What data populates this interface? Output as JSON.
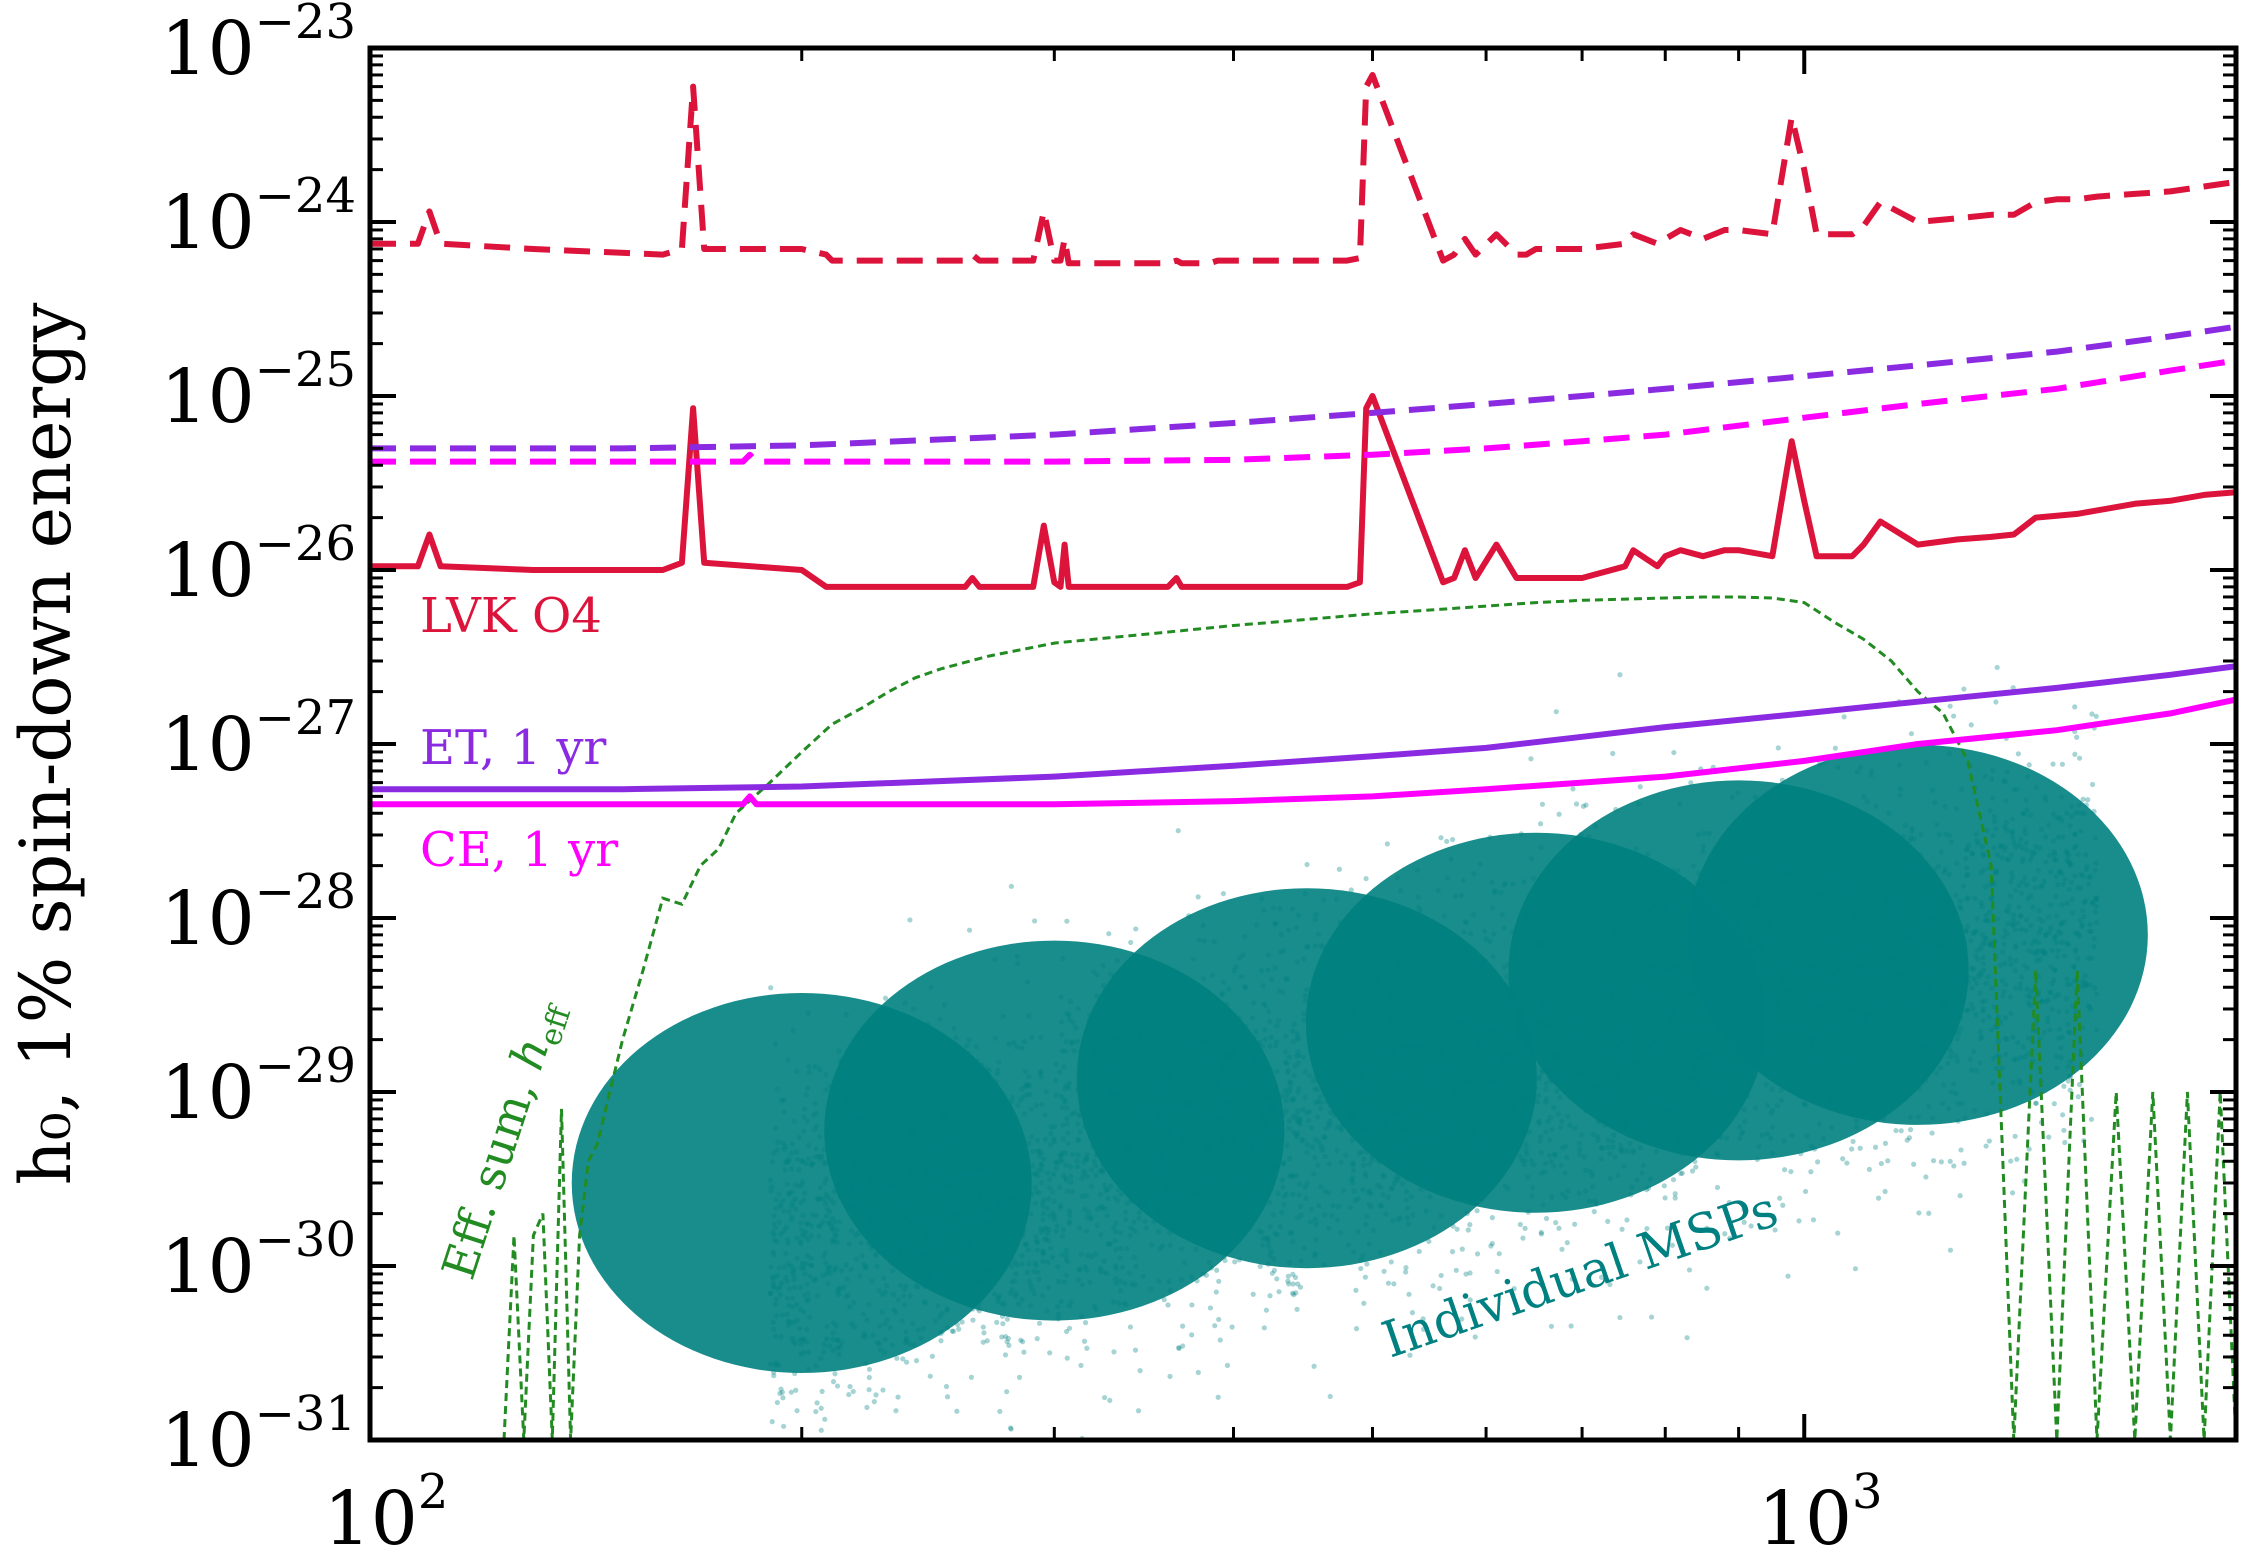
{
  "chart_data": {
    "type": "line",
    "title": "",
    "xlabel": "",
    "ylabel": "h₀, 1% spin-down energy",
    "x_scale": "log",
    "y_scale": "log",
    "xlim": [
      100,
      2000
    ],
    "ylim": [
      1e-31,
      1e-23
    ],
    "grid": false,
    "legend": "none",
    "x_ticks": [
      {
        "value": 100,
        "base": "10",
        "exp": "2"
      },
      {
        "value": 1000,
        "base": "10",
        "exp": "3"
      }
    ],
    "y_ticks": [
      {
        "value": 1e-23,
        "base": "10",
        "exp": "−23"
      },
      {
        "value": 1e-24,
        "base": "10",
        "exp": "−24"
      },
      {
        "value": 1e-25,
        "base": "10",
        "exp": "−25"
      },
      {
        "value": 1e-26,
        "base": "10",
        "exp": "−26"
      },
      {
        "value": 1e-27,
        "base": "10",
        "exp": "−27"
      },
      {
        "value": 1e-28,
        "base": "10",
        "exp": "−28"
      },
      {
        "value": 1e-29,
        "base": "10",
        "exp": "−29"
      },
      {
        "value": 1e-30,
        "base": "10",
        "exp": "−30"
      },
      {
        "value": 1e-31,
        "base": "10",
        "exp": "−31"
      }
    ],
    "colors": {
      "lvk": "#dc143c",
      "et": "#8a2be2",
      "ce": "#ff00ff",
      "eff_sum": "#228b22",
      "msps": "#008080"
    },
    "series": [
      {
        "style": "solid",
        "color": "#dc143c",
        "x": [
          100,
          108,
          110,
          112,
          130,
          160,
          165,
          168,
          171,
          200,
          208,
          210,
          212,
          215,
          217,
          219,
          260,
          263,
          266,
          290,
          295,
          300,
          303,
          305,
          307,
          310,
          330,
          360,
          365,
          368,
          380,
          385,
          390,
          410,
          420,
          450,
          480,
          490,
          495,
          500,
          560,
          570,
          580,
          590,
          610,
          630,
          640,
          650,
          700,
          750,
          760,
          790,
          800,
          820,
          850,
          880,
          900,
          950,
          980,
          1000,
          1020,
          1050,
          1080,
          1100,
          1130,
          1200,
          1280,
          1350,
          1400,
          1450,
          1500,
          1550,
          1600,
          1700,
          1800,
          1900,
          2000
        ],
        "y": [
          1.05e-26,
          1.05e-26,
          1.6e-26,
          1.05e-26,
          1e-26,
          1e-26,
          1.1e-26,
          8.5e-26,
          1.1e-26,
          1e-26,
          8e-27,
          8e-27,
          8e-27,
          8e-27,
          8e-27,
          8e-27,
          8e-27,
          9e-27,
          8e-27,
          8e-27,
          1.8e-26,
          8.5e-27,
          8e-27,
          1.4e-26,
          8e-27,
          8e-27,
          8e-27,
          8e-27,
          9e-27,
          8e-27,
          8e-27,
          8e-27,
          8e-27,
          8e-27,
          8e-27,
          8e-27,
          8e-27,
          8.5e-27,
          8.5e-26,
          1e-25,
          8.5e-27,
          9e-27,
          1.3e-26,
          9e-27,
          1.4e-26,
          9e-27,
          9e-27,
          9e-27,
          9e-27,
          1.05e-26,
          1.3e-26,
          1.05e-26,
          1.2e-26,
          1.3e-26,
          1.2e-26,
          1.3e-26,
          1.3e-26,
          1.2e-26,
          5.5e-26,
          2.5e-26,
          1.2e-26,
          1.2e-26,
          1.2e-26,
          1.4e-26,
          1.9e-26,
          1.4e-26,
          1.5e-26,
          1.55e-26,
          1.6e-26,
          2e-26,
          2.05e-26,
          2.1e-26,
          2.2e-26,
          2.4e-26,
          2.5e-26,
          2.7e-26,
          2.8e-26
        ]
      },
      {
        "style": "dashed",
        "color": "#dc143c",
        "x": [
          100,
          108,
          110,
          112,
          130,
          160,
          165,
          168,
          171,
          200,
          208,
          210,
          212,
          215,
          217,
          219,
          260,
          263,
          266,
          290,
          295,
          300,
          303,
          305,
          307,
          310,
          330,
          360,
          365,
          368,
          380,
          385,
          390,
          410,
          420,
          450,
          480,
          490,
          495,
          500,
          560,
          570,
          580,
          590,
          610,
          630,
          640,
          650,
          700,
          750,
          760,
          790,
          800,
          820,
          850,
          880,
          900,
          950,
          980,
          1000,
          1020,
          1050,
          1080,
          1100,
          1130,
          1200,
          1280,
          1350,
          1400,
          1450,
          1500,
          1550,
          1600,
          1700,
          1800,
          1900,
          2000
        ],
        "y": [
          7.5e-25,
          7.5e-25,
          1.15e-24,
          7.5e-25,
          7e-25,
          6.5e-25,
          7e-25,
          6e-24,
          7e-25,
          7e-25,
          6.5e-25,
          6e-25,
          6e-25,
          6e-25,
          6e-25,
          6e-25,
          6e-25,
          6.5e-25,
          6e-25,
          6e-25,
          1.15e-24,
          6e-25,
          6e-25,
          8e-25,
          5.8e-25,
          5.8e-25,
          5.8e-25,
          5.8e-25,
          6e-25,
          5.8e-25,
          5.8e-25,
          5.8e-25,
          6e-25,
          6e-25,
          6e-25,
          6e-25,
          6e-25,
          6.2e-25,
          6e-24,
          7e-24,
          6e-25,
          6.5e-25,
          8e-25,
          6.5e-25,
          8.5e-25,
          6.5e-25,
          6.5e-25,
          7e-25,
          7e-25,
          7.5e-25,
          8.5e-25,
          7.5e-25,
          8e-25,
          9e-25,
          8e-25,
          9e-25,
          9e-25,
          8.5e-25,
          4e-24,
          2e-24,
          8.5e-25,
          8.5e-25,
          8.5e-25,
          9.5e-25,
          1.3e-24,
          1e-24,
          1.05e-24,
          1.1e-24,
          1.1e-24,
          1.3e-24,
          1.35e-24,
          1.35e-24,
          1.4e-24,
          1.45e-24,
          1.5e-24,
          1.6e-24,
          1.7e-24
        ]
      },
      {
        "style": "dashed",
        "color": "#8a2be2",
        "x": [
          100,
          150,
          200,
          300,
          400,
          500,
          600,
          700,
          800,
          1000,
          1200,
          1500,
          1800,
          2000
        ],
        "y": [
          5e-26,
          5e-26,
          5.2e-26,
          6e-26,
          7e-26,
          8e-26,
          9e-26,
          1e-25,
          1.1e-25,
          1.3e-25,
          1.5e-25,
          1.8e-25,
          2.2e-25,
          2.5e-25
        ]
      },
      {
        "style": "dashed",
        "color": "#ff00ff",
        "x": [
          100,
          150,
          182,
          184,
          186,
          200,
          300,
          400,
          500,
          600,
          700,
          800,
          1000,
          1200,
          1500,
          1800,
          2000
        ],
        "y": [
          4.2e-26,
          4.2e-26,
          4.2e-26,
          4.6e-26,
          4.2e-26,
          4.2e-26,
          4.2e-26,
          4.3e-26,
          4.6e-26,
          5e-26,
          5.5e-26,
          6e-26,
          7.5e-26,
          9e-26,
          1.1e-25,
          1.4e-25,
          1.6e-25
        ]
      },
      {
        "style": "solid",
        "color": "#8a2be2",
        "x": [
          100,
          150,
          200,
          300,
          400,
          500,
          600,
          700,
          800,
          1000,
          1200,
          1500,
          1800,
          2000
        ],
        "y": [
          5.5e-28,
          5.5e-28,
          5.7e-28,
          6.5e-28,
          7.5e-28,
          8.5e-28,
          9.5e-28,
          1.1e-27,
          1.25e-27,
          1.5e-27,
          1.75e-27,
          2.1e-27,
          2.5e-27,
          2.8e-27
        ]
      },
      {
        "style": "solid",
        "color": "#ff00ff",
        "x": [
          100,
          150,
          182,
          184,
          186,
          200,
          300,
          400,
          500,
          600,
          700,
          800,
          1000,
          1200,
          1500,
          1800,
          2000
        ],
        "y": [
          4.5e-28,
          4.5e-28,
          4.5e-28,
          5e-28,
          4.5e-28,
          4.5e-28,
          4.5e-28,
          4.7e-28,
          5e-28,
          5.5e-28,
          6e-28,
          6.5e-28,
          8e-28,
          1e-27,
          1.2e-27,
          1.5e-27,
          1.8e-27
        ]
      }
    ],
    "eff_sum": {
      "style": "dashed",
      "color": "#228b22",
      "x": [
        124,
        126,
        128,
        130,
        132,
        134,
        136,
        138,
        140,
        142,
        144,
        146,
        150,
        155,
        160,
        165,
        170,
        175,
        180,
        190,
        200,
        210,
        220,
        230,
        240,
        250,
        270,
        300,
        350,
        400,
        450,
        500,
        550,
        600,
        650,
        700,
        750,
        800,
        850,
        900,
        950,
        1000,
        1050,
        1100,
        1150,
        1200,
        1250,
        1300,
        1350,
        1400,
        1450,
        1500,
        1550,
        1600,
        1650,
        1700,
        1750,
        1800,
        1850,
        1900,
        1950,
        2000
      ],
      "y": [
        1e-31,
        1.5e-30,
        1e-31,
        1.5e-30,
        2e-30,
        1e-31,
        8e-30,
        1e-31,
        1.5e-30,
        4e-30,
        5e-30,
        8e-30,
        2e-29,
        5e-29,
        1.3e-28,
        1.2e-28,
        2e-28,
        2.5e-28,
        4e-28,
        6e-28,
        9e-28,
        1.3e-27,
        1.6e-27,
        2e-27,
        2.4e-27,
        2.7e-27,
        3.2e-27,
        3.8e-27,
        4.3e-27,
        4.8e-27,
        5.2e-27,
        5.6e-27,
        5.9e-27,
        6.2e-27,
        6.5e-27,
        6.7e-27,
        6.8e-27,
        6.9e-27,
        7e-27,
        7e-27,
        6.9e-27,
        6.5e-27,
        5e-27,
        4e-27,
        3e-27,
        2e-27,
        1.5e-27,
        8e-28,
        2e-28,
        1e-31,
        5e-29,
        1e-31,
        5e-29,
        1e-31,
        1e-29,
        1e-31,
        1e-29,
        1e-31,
        1e-29,
        1e-31,
        1e-29,
        1e-31
      ]
    },
    "msps": {
      "color": "#008080",
      "count": 0
    }
  },
  "annotations": {
    "lvk": "LVK O4",
    "et": "ET, 1 yr",
    "ce": "CE, 1 yr",
    "eff_sum_prefix": "Eff. sum, ",
    "eff_sum_h": "h",
    "eff_sum_sub": "eff",
    "msps": "Individual MSPs"
  }
}
